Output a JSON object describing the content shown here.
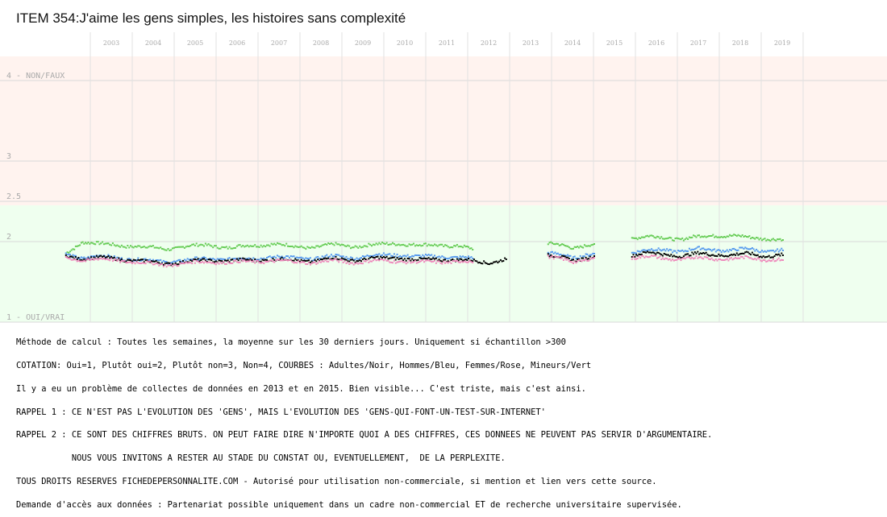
{
  "chart_data": {
    "type": "scatter",
    "title": "ITEM 354:J'aime les gens simples, les histoires sans complexité",
    "x_years": [
      "2003",
      "2004",
      "2005",
      "2006",
      "2007",
      "2008",
      "2009",
      "2010",
      "2011",
      "2012",
      "2013",
      "2014",
      "2015",
      "2016",
      "2017",
      "2018",
      "2019"
    ],
    "ylim": [
      1,
      4
    ],
    "y_ticks": [
      {
        "value": 4,
        "label": "4 - NON/FAUX"
      },
      {
        "value": 3,
        "label": "3"
      },
      {
        "value": 2.5,
        "label": "2.5"
      },
      {
        "value": 2,
        "label": "2"
      },
      {
        "value": 1,
        "label": "1 - OUI/VRAI"
      }
    ],
    "bands": [
      {
        "from": 1,
        "to": 2.45,
        "color": "#efffef"
      },
      {
        "from": 2.45,
        "to": 4.3,
        "color": "#fff3ef"
      }
    ],
    "series": [
      {
        "color": "#66cc55",
        "segments": [
          {
            "x": [
              2002.4,
              2002.8,
              2003.2,
              2003.8,
              2004.3,
              2004.8,
              2005.3,
              2005.8,
              2006.3,
              2006.8,
              2007.3,
              2007.8,
              2008.3,
              2008.8,
              2009.3,
              2009.8,
              2010.3,
              2010.8,
              2011.3,
              2011.8,
              2012.1
            ],
            "y": [
              1.85,
              2.0,
              1.97,
              1.95,
              1.93,
              1.91,
              1.94,
              1.96,
              1.92,
              1.95,
              1.97,
              1.94,
              1.93,
              1.96,
              1.94,
              1.96,
              1.98,
              1.95,
              1.96,
              1.94,
              1.9
            ]
          },
          {
            "x": [
              2013.9,
              2014.2,
              2014.5,
              2014.8,
              2015.0
            ],
            "y": [
              1.98,
              1.95,
              1.92,
              1.96,
              1.97
            ]
          },
          {
            "x": [
              2015.9,
              2016.3,
              2016.7,
              2017.1,
              2017.5,
              2017.9,
              2018.3,
              2018.7,
              2019.1,
              2019.5
            ],
            "y": [
              2.04,
              2.06,
              2.05,
              2.03,
              2.06,
              2.08,
              2.07,
              2.05,
              2.04,
              2.02
            ]
          }
        ]
      },
      {
        "color": "#5599ee",
        "segments": [
          {
            "x": [
              2002.4,
              2002.8,
              2003.2,
              2003.8,
              2004.3,
              2004.8,
              2005.3,
              2005.8,
              2006.3,
              2006.8,
              2007.3,
              2007.8,
              2008.3,
              2008.8,
              2009.3,
              2009.8,
              2010.3,
              2010.8,
              2011.3,
              2011.8,
              2012.1
            ],
            "y": [
              1.84,
              1.8,
              1.82,
              1.79,
              1.77,
              1.75,
              1.77,
              1.79,
              1.78,
              1.79,
              1.81,
              1.8,
              1.79,
              1.82,
              1.8,
              1.83,
              1.84,
              1.81,
              1.82,
              1.8,
              1.79
            ]
          },
          {
            "x": [
              2013.9,
              2014.2,
              2014.5,
              2014.8,
              2015.0
            ],
            "y": [
              1.86,
              1.83,
              1.8,
              1.84,
              1.85
            ]
          },
          {
            "x": [
              2015.9,
              2016.3,
              2016.7,
              2017.1,
              2017.5,
              2017.9,
              2018.3,
              2018.7,
              2019.1,
              2019.5
            ],
            "y": [
              1.87,
              1.89,
              1.9,
              1.88,
              1.91,
              1.9,
              1.89,
              1.91,
              1.88,
              1.89
            ]
          }
        ]
      },
      {
        "color": "#000000",
        "segments": [
          {
            "x": [
              2002.4,
              2002.8,
              2003.2,
              2003.8,
              2004.3,
              2004.8,
              2005.3,
              2005.8,
              2006.3,
              2006.8,
              2007.3,
              2007.8,
              2008.3,
              2008.8,
              2009.3,
              2009.8,
              2010.3,
              2010.8,
              2011.3,
              2011.8,
              2012.1,
              2012.5,
              2012.9
            ],
            "y": [
              1.82,
              1.79,
              1.8,
              1.78,
              1.75,
              1.73,
              1.75,
              1.77,
              1.76,
              1.77,
              1.78,
              1.77,
              1.76,
              1.79,
              1.77,
              1.79,
              1.8,
              1.77,
              1.78,
              1.77,
              1.76,
              1.74,
              1.78
            ]
          },
          {
            "x": [
              2013.9,
              2014.2,
              2014.5,
              2014.8,
              2015.0
            ],
            "y": [
              1.83,
              1.8,
              1.77,
              1.8,
              1.82
            ]
          },
          {
            "x": [
              2015.9,
              2016.3,
              2016.7,
              2017.1,
              2017.5,
              2017.9,
              2018.3,
              2018.7,
              2019.1,
              2019.5
            ],
            "y": [
              1.83,
              1.86,
              1.84,
              1.82,
              1.85,
              1.84,
              1.83,
              1.85,
              1.82,
              1.83
            ]
          }
        ]
      },
      {
        "color": "#ee88bb",
        "segments": [
          {
            "x": [
              2002.4,
              2002.8,
              2003.2,
              2003.8,
              2004.3,
              2004.8,
              2005.3,
              2005.8,
              2006.3,
              2006.8,
              2007.3,
              2007.8,
              2008.3,
              2008.8,
              2009.3,
              2009.8,
              2010.3,
              2010.8,
              2011.3,
              2011.8,
              2012.1
            ],
            "y": [
              1.8,
              1.77,
              1.78,
              1.76,
              1.73,
              1.71,
              1.73,
              1.75,
              1.74,
              1.75,
              1.76,
              1.75,
              1.74,
              1.76,
              1.74,
              1.76,
              1.76,
              1.74,
              1.75,
              1.75,
              1.74
            ]
          },
          {
            "x": [
              2013.9,
              2014.2,
              2014.5,
              2014.8,
              2015.0
            ],
            "y": [
              1.81,
              1.78,
              1.75,
              1.78,
              1.8
            ]
          },
          {
            "x": [
              2015.9,
              2016.3,
              2016.7,
              2017.1,
              2017.5,
              2017.9,
              2018.3,
              2018.7,
              2019.1,
              2019.5
            ],
            "y": [
              1.8,
              1.81,
              1.79,
              1.78,
              1.8,
              1.79,
              1.78,
              1.8,
              1.78,
              1.77
            ]
          }
        ]
      }
    ]
  },
  "notes": [
    "Méthode de calcul : Toutes les semaines, la moyenne sur les 30 derniers jours. Uniquement si échantillon >300",
    "COTATION: Oui=1, Plutôt oui=2, Plutôt non=3, Non=4, COURBES : Adultes/Noir, Hommes/Bleu, Femmes/Rose, Mineurs/Vert",
    "Il y a eu un problème de collectes de données en 2013 et en 2015. Bien visible... C'est triste, mais c'est ainsi.",
    "RAPPEL 1 : CE N'EST PAS L'EVOLUTION DES 'GENS', MAIS L'EVOLUTION DES 'GENS-QUI-FONT-UN-TEST-SUR-INTERNET'",
    "RAPPEL 2 : CE SONT DES CHIFFRES BRUTS. ON PEUT FAIRE DIRE N'IMPORTE QUOI A DES CHIFFRES, CES DONNEES NE PEUVENT PAS SERVIR D'ARGUMENTAIRE.",
    "           NOUS VOUS INVITONS A RESTER AU STADE DU CONSTAT OU, EVENTUELLEMENT,  DE LA PERPLEXITE.",
    "TOUS DROITS RESERVES FICHEDEPERSONNALITE.COM - Autorisé pour utilisation non-commerciale, si mention et lien vers cette source.",
    "Demande d'accès aux données : Partenariat possible uniquement dans un cadre non-commercial ET de recherche universitaire supervisée."
  ]
}
